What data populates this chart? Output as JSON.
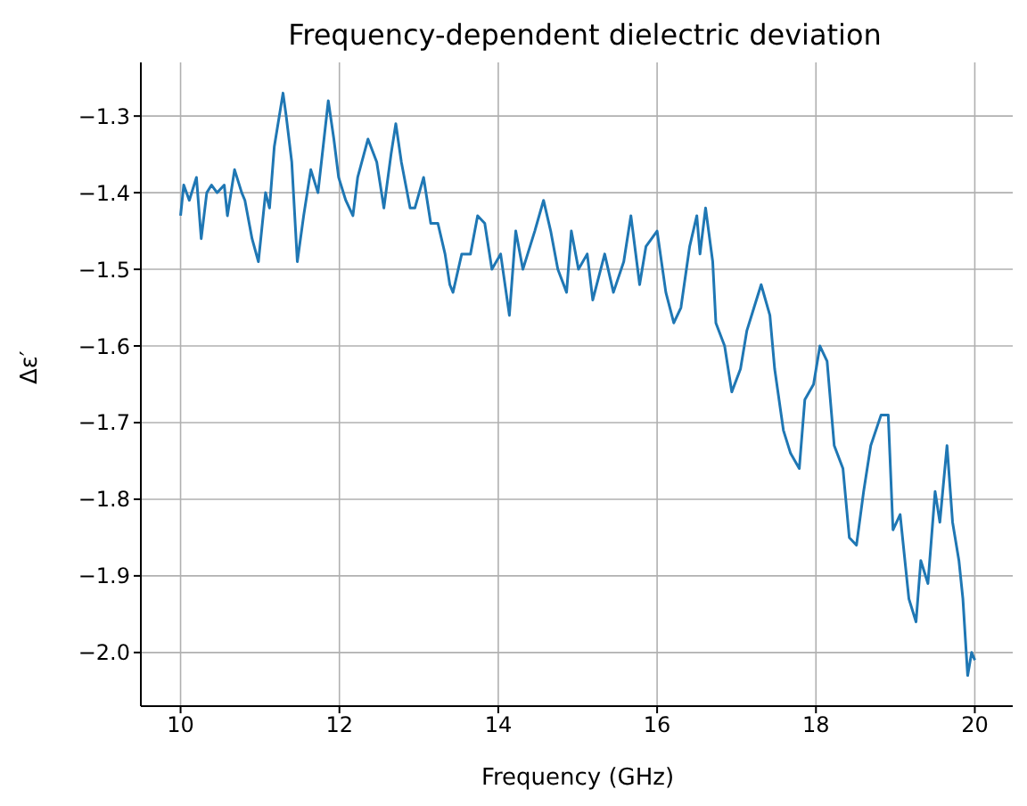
{
  "chart_data": {
    "type": "line",
    "title": "Frequency-dependent dielectric deviation",
    "xlabel": "Frequency (GHz)",
    "ylabel": "Δε′",
    "x": [
      10.0,
      10.04,
      10.11,
      10.2,
      10.26,
      10.33,
      10.39,
      10.46,
      10.55,
      10.59,
      10.68,
      10.77,
      10.81,
      10.9,
      10.98,
      11.07,
      11.12,
      11.18,
      11.29,
      11.33,
      11.4,
      11.47,
      11.55,
      11.64,
      11.73,
      11.86,
      11.93,
      11.99,
      12.08,
      12.17,
      12.23,
      12.36,
      12.47,
      12.56,
      12.65,
      12.71,
      12.78,
      12.89,
      12.95,
      13.06,
      13.15,
      13.24,
      13.33,
      13.39,
      13.43,
      13.54,
      13.65,
      13.74,
      13.83,
      13.92,
      14.03,
      14.14,
      14.22,
      14.31,
      14.46,
      14.57,
      14.66,
      14.75,
      14.86,
      14.92,
      15.01,
      15.12,
      15.19,
      15.34,
      15.45,
      15.58,
      15.67,
      15.78,
      15.86,
      16.0,
      16.11,
      16.21,
      16.3,
      16.41,
      16.5,
      16.54,
      16.61,
      16.7,
      16.74,
      16.85,
      16.94,
      17.05,
      17.13,
      17.22,
      17.31,
      17.42,
      17.48,
      17.59,
      17.68,
      17.79,
      17.86,
      17.97,
      18.05,
      18.14,
      18.23,
      18.34,
      18.42,
      18.51,
      18.6,
      18.69,
      18.82,
      18.91,
      18.97,
      19.06,
      19.17,
      19.26,
      19.32,
      19.41,
      19.5,
      19.56,
      19.65,
      19.72,
      19.8,
      19.85,
      19.91,
      19.96,
      20.0
    ],
    "series": [
      {
        "color": "#1f77b4",
        "values": [
          -1.43,
          -1.39,
          -1.41,
          -1.38,
          -1.46,
          -1.4,
          -1.39,
          -1.4,
          -1.39,
          -1.43,
          -1.37,
          -1.4,
          -1.41,
          -1.46,
          -1.49,
          -1.4,
          -1.42,
          -1.34,
          -1.27,
          -1.3,
          -1.36,
          -1.49,
          -1.43,
          -1.37,
          -1.4,
          -1.28,
          -1.33,
          -1.38,
          -1.41,
          -1.43,
          -1.38,
          -1.33,
          -1.36,
          -1.42,
          -1.35,
          -1.31,
          -1.36,
          -1.42,
          -1.42,
          -1.38,
          -1.44,
          -1.44,
          -1.48,
          -1.52,
          -1.53,
          -1.48,
          -1.48,
          -1.43,
          -1.44,
          -1.5,
          -1.48,
          -1.56,
          -1.45,
          -1.5,
          -1.45,
          -1.41,
          -1.45,
          -1.5,
          -1.53,
          -1.45,
          -1.5,
          -1.48,
          -1.54,
          -1.48,
          -1.53,
          -1.49,
          -1.43,
          -1.52,
          -1.47,
          -1.45,
          -1.53,
          -1.57,
          -1.55,
          -1.47,
          -1.43,
          -1.48,
          -1.42,
          -1.49,
          -1.57,
          -1.6,
          -1.66,
          -1.63,
          -1.58,
          -1.55,
          -1.52,
          -1.56,
          -1.63,
          -1.71,
          -1.74,
          -1.76,
          -1.67,
          -1.65,
          -1.6,
          -1.62,
          -1.73,
          -1.76,
          -1.85,
          -1.86,
          -1.79,
          -1.73,
          -1.69,
          -1.69,
          -1.84,
          -1.82,
          -1.93,
          -1.96,
          -1.88,
          -1.91,
          -1.79,
          -1.83,
          -1.73,
          -1.83,
          -1.88,
          -1.93,
          -2.03,
          -2.0,
          -2.01
        ]
      }
    ],
    "xlim": [
      9.5,
      20.5
    ],
    "xticks": [
      10,
      12,
      14,
      16,
      18,
      20
    ],
    "ylim": [
      -2.07,
      -1.23
    ],
    "yticks": [
      {
        "value": -2.0,
        "label": "−2.0"
      },
      {
        "value": -1.9,
        "label": "−1.9"
      },
      {
        "value": -1.8,
        "label": "−1.8"
      },
      {
        "value": -1.7,
        "label": "−1.7"
      },
      {
        "value": -1.6,
        "label": "−1.6"
      },
      {
        "value": -1.5,
        "label": "−1.5"
      },
      {
        "value": -1.4,
        "label": "−1.4"
      },
      {
        "value": -1.3,
        "label": "−1.3"
      }
    ],
    "grid": true,
    "marker": "none",
    "line_style": "solid",
    "legend": false
  }
}
